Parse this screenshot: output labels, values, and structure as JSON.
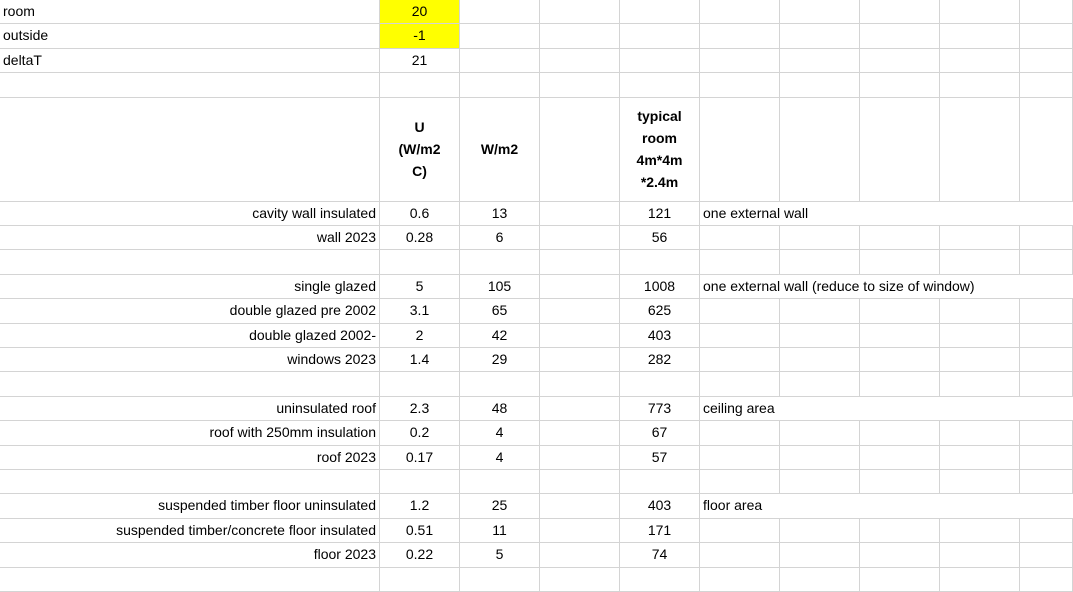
{
  "params": [
    {
      "label": "room",
      "value": "20",
      "highlight": true
    },
    {
      "label": "outside",
      "value": "-1",
      "highlight": true
    },
    {
      "label": "deltaT",
      "value": "21",
      "highlight": false
    }
  ],
  "headers": {
    "u": "U (W/m2 C)",
    "wm2": "W/m2",
    "typical": "typical room 4m*4m *2.4m"
  },
  "groups": [
    {
      "rows": [
        {
          "label": "cavity wall insulated",
          "u": "0.6",
          "wm2": "13",
          "room": "121",
          "note": "one external wall"
        },
        {
          "label": "wall 2023",
          "u": "0.28",
          "wm2": "6",
          "room": "56",
          "note": ""
        }
      ]
    },
    {
      "rows": [
        {
          "label": "single glazed",
          "u": "5",
          "wm2": "105",
          "room": "1008",
          "note": "one external wall (reduce to size of window)"
        },
        {
          "label": "double glazed pre 2002",
          "u": "3.1",
          "wm2": "65",
          "room": "625",
          "note": ""
        },
        {
          "label": "double glazed 2002-",
          "u": "2",
          "wm2": "42",
          "room": "403",
          "note": ""
        },
        {
          "label": "windows 2023",
          "u": "1.4",
          "wm2": "29",
          "room": "282",
          "note": ""
        }
      ]
    },
    {
      "rows": [
        {
          "label": "uninsulated roof",
          "u": "2.3",
          "wm2": "48",
          "room": "773",
          "note": "ceiling area"
        },
        {
          "label": "roof with 250mm insulation",
          "u": "0.2",
          "wm2": "4",
          "room": "67",
          "note": ""
        },
        {
          "label": "roof 2023",
          "u": "0.17",
          "wm2": "4",
          "room": "57",
          "note": ""
        }
      ]
    },
    {
      "rows": [
        {
          "label": "suspended timber floor uninsulated",
          "u": "1.2",
          "wm2": "25",
          "room": "403",
          "note": "floor area"
        },
        {
          "label": "suspended timber/concrete floor insulated",
          "u": "0.51",
          "wm2": "11",
          "room": "171",
          "note": ""
        },
        {
          "label": "floor 2023",
          "u": "0.22",
          "wm2": "5",
          "room": "74",
          "note": ""
        }
      ]
    }
  ]
}
